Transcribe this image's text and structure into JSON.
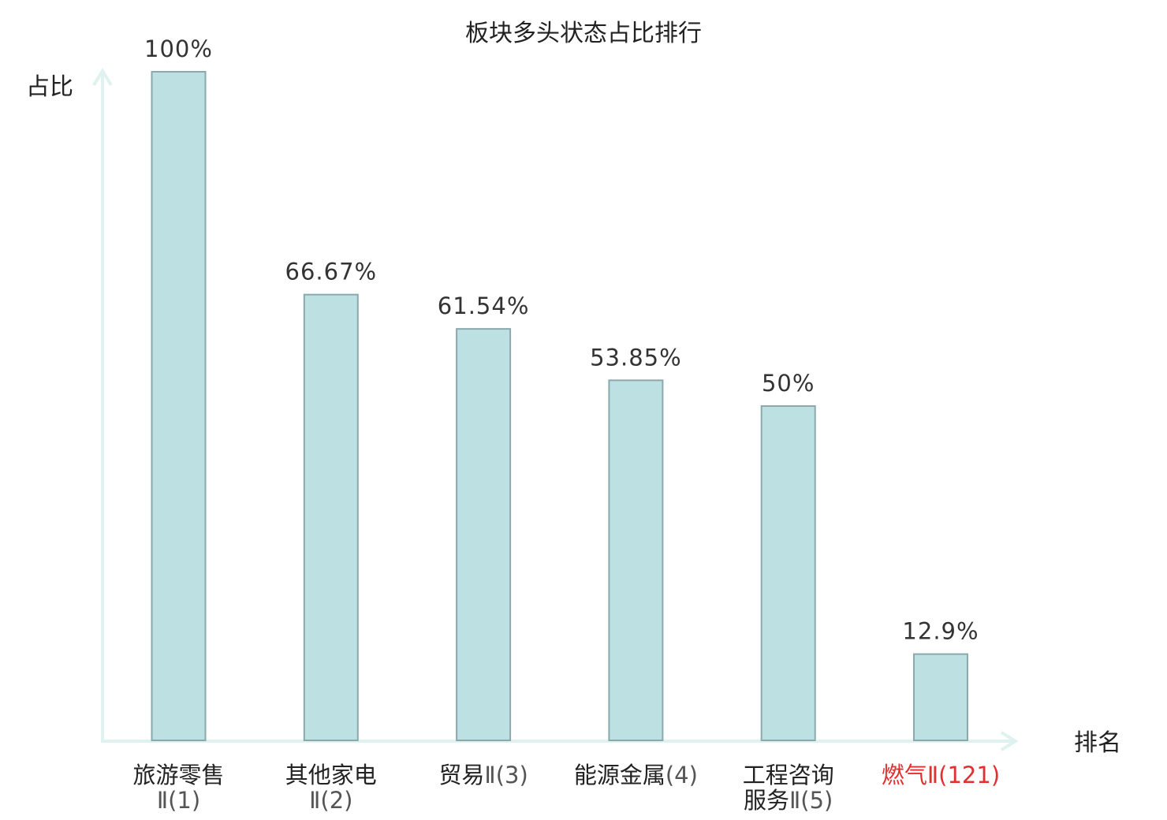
{
  "colors": {
    "bar_fill": "#bde0e3",
    "bar_stroke": "#8aa9ad",
    "axis": "#dff2ef",
    "text": "#222222",
    "suffix_text": "#555555",
    "highlight": "#e03030"
  },
  "chart_data": {
    "type": "bar",
    "title": "板块多头状态占比排行",
    "ylabel": "占比",
    "xlabel": "排名",
    "ylim": [
      0,
      100
    ],
    "grid": false,
    "unit": "%",
    "categories": [
      {
        "name": "旅游零售",
        "suffix": "Ⅱ(1)",
        "highlight": false,
        "lines": [
          [
            "旅游零售",
            ""
          ],
          [
            "",
            "Ⅱ(1)"
          ]
        ]
      },
      {
        "name": "其他家电",
        "suffix": "Ⅱ(2)",
        "highlight": false,
        "lines": [
          [
            "其他家电",
            ""
          ],
          [
            "",
            "Ⅱ(2)"
          ]
        ]
      },
      {
        "name": "贸易",
        "suffix": "Ⅱ(3)",
        "highlight": false,
        "lines": [
          [
            "贸易",
            "Ⅱ(3)"
          ]
        ]
      },
      {
        "name": "能源金属",
        "suffix": "(4)",
        "highlight": false,
        "lines": [
          [
            "能源金属",
            "(4)"
          ]
        ]
      },
      {
        "name": "工程咨询服务",
        "suffix": "Ⅱ(5)",
        "highlight": false,
        "lines": [
          [
            "工程咨询",
            ""
          ],
          [
            "服务",
            "Ⅱ(5)"
          ]
        ]
      },
      {
        "name": "燃气",
        "suffix": "Ⅱ(121)",
        "highlight": true,
        "lines": [
          [
            "燃气",
            "Ⅱ(121)"
          ]
        ]
      }
    ],
    "values": [
      100,
      66.67,
      61.54,
      53.85,
      50,
      12.9
    ],
    "value_labels": [
      "100%",
      "66.67%",
      "61.54%",
      "53.85%",
      "50%",
      "12.9%"
    ]
  }
}
